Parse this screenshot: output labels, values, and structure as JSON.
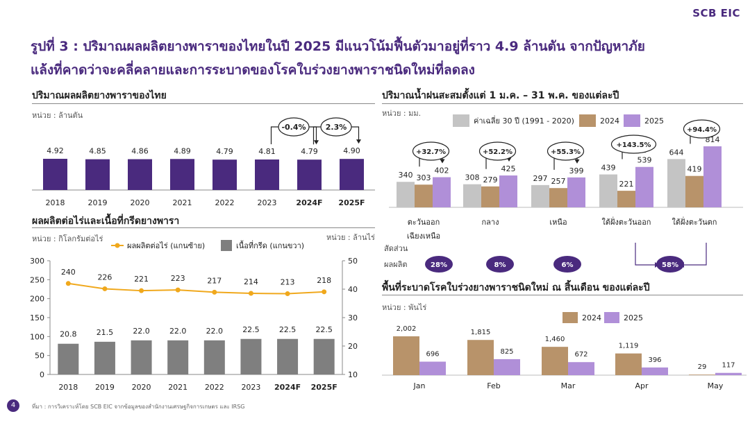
{
  "brand": "SCB EIC",
  "title_line1": "รูปที่ 3 : ปริมาณผลผลิตยางพาราของไทยในปี 2025 มีแนวโน้มฟื้นตัวมาอยู่ที่ราว 4.9 ล้านตัน จากปัญหาภัย",
  "title_line2": "แล้งที่คาดว่าจะคลี่คลายและการระบาดของโรคใบร่วงยางพาราชนิดใหม่ที่ลดลง",
  "page_number": "4",
  "source": "ที่มา : การวิเคราะห์โดย SCB EIC จากข้อมูลของสำนักงานเศรษฐกิจการเกษตร และ IRSG",
  "colors": {
    "purple": "#4a2a7e",
    "lavender": "#b08fd8",
    "tan": "#b8936a",
    "gray": "#c4c4c4",
    "orange": "#f0a81c",
    "darkgray": "#7f7f7f"
  },
  "chart_data": [
    {
      "id": "production",
      "type": "bar",
      "title": "ปริมาณผลผลิตยางพาราของไทย",
      "unit": "หน่วย : ล้านตัน",
      "categories": [
        "2018",
        "2019",
        "2020",
        "2021",
        "2022",
        "2023",
        "2024F",
        "2025F"
      ],
      "values": [
        4.92,
        4.85,
        4.86,
        4.89,
        4.79,
        4.81,
        4.79,
        4.9
      ],
      "value_labels": [
        "4.92",
        "4.85",
        "4.86",
        "4.89",
        "4.79",
        "4.81",
        "4.79",
        "4.90"
      ],
      "bold_categories": [
        "2024F",
        "2025F"
      ],
      "annotations": [
        {
          "from": "2023",
          "to": "2024F",
          "label": "-0.4%"
        },
        {
          "from": "2024F",
          "to": "2025F",
          "label": "2.3%"
        }
      ]
    },
    {
      "id": "yield_area",
      "type": "bar+line",
      "title": "ผลผลิตต่อไร่และเนื้อที่กรีดยางพารา",
      "unit_left": "หน่วย : กิโลกรัมต่อไร่",
      "unit_right": "หน่วย : ล้านไร่",
      "categories": [
        "2018",
        "2019",
        "2020",
        "2021",
        "2022",
        "2023",
        "2024F",
        "2025F"
      ],
      "bold_categories": [
        "2024F",
        "2025F"
      ],
      "series": [
        {
          "name": "ผลผลิตต่อไร่ (แกนซ้าย)",
          "type": "line",
          "axis": "left",
          "values": [
            240,
            226,
            221,
            223,
            217,
            214,
            213,
            218
          ]
        },
        {
          "name": "เนื้อที่กรีด (แกนขวา)",
          "type": "bar",
          "axis": "right",
          "values": [
            20.8,
            21.5,
            22.0,
            22.0,
            22.0,
            22.5,
            22.5,
            22.5
          ],
          "value_labels": [
            "20.8",
            "21.5",
            "22.0",
            "22.0",
            "22.0",
            "22.5",
            "22.5",
            "22.5"
          ]
        }
      ],
      "ylim_left": [
        0,
        300
      ],
      "yticks_left": [
        0,
        50,
        100,
        150,
        200,
        250,
        300
      ],
      "ylim_right": [
        10,
        50
      ],
      "yticks_right": [
        10,
        20,
        30,
        40,
        50
      ]
    },
    {
      "id": "rainfall",
      "type": "bar",
      "title": "ปริมาณน้ำฝนสะสมตั้งแต่ 1 ม.ค. –  31 พ.ค. ของแต่ละปี",
      "unit": "หน่วย : มม.",
      "categories": [
        "ตะวันออก\nเฉียงเหนือ",
        "กลาง",
        "เหนือ",
        "ใต้ฝั่งตะวันออก",
        "ใต้ฝั่งตะวันตก"
      ],
      "category_lines": [
        [
          "ตะวันออก",
          "เฉียงเหนือ"
        ],
        [
          "กลาง"
        ],
        [
          "เหนือ"
        ],
        [
          "ใต้ฝั่งตะวันออก"
        ],
        [
          "ใต้ฝั่งตะวันตก"
        ]
      ],
      "series": [
        {
          "name": "ค่าเฉลี่ย 30 ปี (1991 - 2020)",
          "values": [
            340,
            308,
            297,
            439,
            644
          ]
        },
        {
          "name": "2024",
          "values": [
            303,
            279,
            257,
            221,
            419
          ]
        },
        {
          "name": "2025",
          "values": [
            402,
            425,
            399,
            539,
            814
          ]
        }
      ],
      "changes": [
        "+32.7%",
        "+52.2%",
        "+55.3%",
        "+143.5%",
        "+94.4%"
      ],
      "share_label_line1": "สัดส่วน",
      "share_label_line2": "ผลผลิต",
      "shares": [
        "28%",
        "8%",
        "6%",
        "58%"
      ]
    },
    {
      "id": "disease_area",
      "type": "bar",
      "title": "พื้นที่ระบาดโรคใบร่วงยางพาราชนิดใหม่ ณ สิ้นเดือน ของแต่ละปี",
      "unit": "หน่วย : พันไร่",
      "categories": [
        "Jan",
        "Feb",
        "Mar",
        "Apr",
        "May"
      ],
      "series": [
        {
          "name": "2024",
          "values": [
            2002,
            1815,
            1460,
            1119,
            29
          ],
          "value_labels": [
            "2,002",
            "1,815",
            "1,460",
            "1,119",
            "29"
          ]
        },
        {
          "name": "2025",
          "values": [
            696,
            825,
            672,
            396,
            117
          ],
          "value_labels": [
            "696",
            "825",
            "672",
            "396",
            "117"
          ]
        }
      ]
    }
  ]
}
